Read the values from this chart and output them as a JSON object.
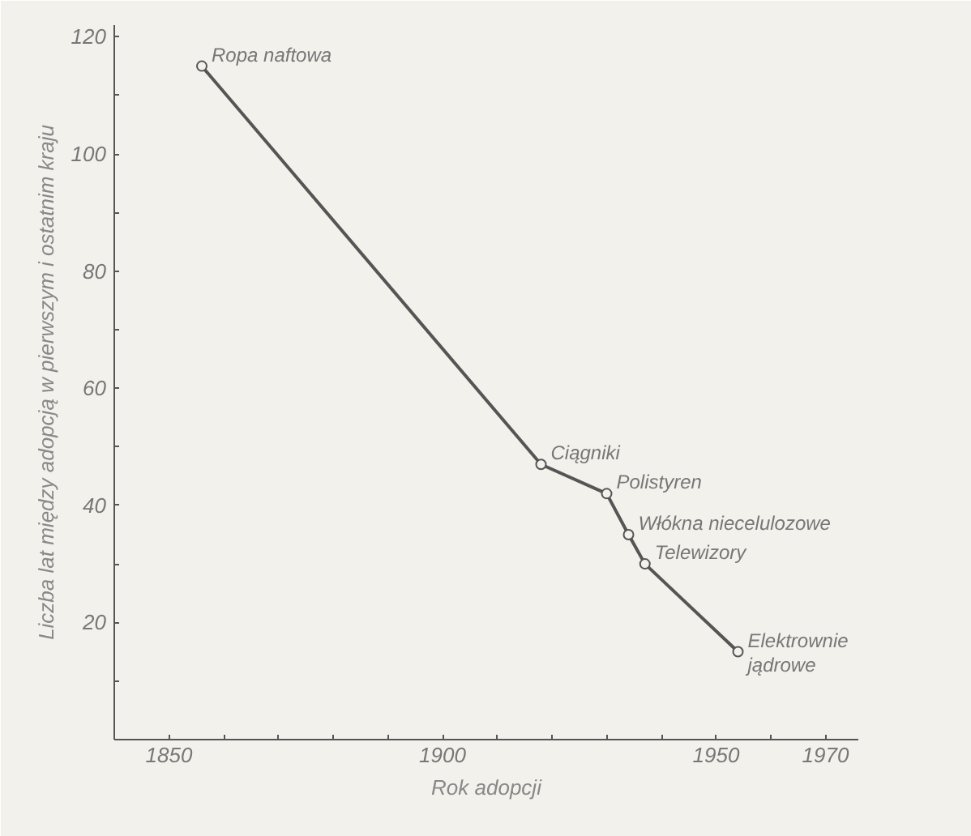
{
  "chart_data": {
    "type": "line",
    "xlabel": "Rok adopcji",
    "ylabel": "Liczba lat między adopcją w pierwszym i ostatnim kraju",
    "x": [
      1856,
      1918,
      1930,
      1934,
      1937,
      1954
    ],
    "series": [
      {
        "color": "#555555",
        "values": [
          115,
          47,
          42,
          35,
          30,
          15
        ]
      }
    ],
    "marker": "circle",
    "line_style": "solid",
    "grid": false,
    "xlim": [
      1840,
      1976
    ],
    "ylim": [
      0,
      122
    ],
    "xticks": [
      1850,
      {
        "value": 1860,
        "label": null
      },
      {
        "value": 1870,
        "label": null
      },
      {
        "value": 1880,
        "label": null
      },
      {
        "value": 1890,
        "label": null
      },
      1900,
      {
        "value": 1910,
        "label": null
      },
      {
        "value": 1920,
        "label": null
      },
      {
        "value": 1930,
        "label": null
      },
      {
        "value": 1940,
        "label": null
      },
      1950,
      {
        "value": 1960,
        "label": null
      },
      1970
    ],
    "yticks": [
      {
        "value": 10,
        "label": null
      },
      20,
      {
        "value": 30,
        "label": null
      },
      40,
      {
        "value": 50,
        "label": null
      },
      60,
      {
        "value": 70,
        "label": null
      },
      80,
      {
        "value": 90,
        "label": null
      },
      100,
      {
        "value": 110,
        "label": null
      },
      120
    ],
    "annotations": [
      {
        "text": "Ropa naftowa",
        "x": 1856,
        "y": 115
      },
      {
        "text": "Ciągniki",
        "x": 1918,
        "y": 47
      },
      {
        "text": "Polistyren",
        "x": 1930,
        "y": 42
      },
      {
        "text": "Włókna niecelulozowe",
        "x": 1934,
        "y": 35
      },
      {
        "text": "Telewizory",
        "x": 1937,
        "y": 30
      },
      {
        "text": "Elektrownie\njądrowe",
        "x": 1954,
        "y": 15
      }
    ]
  }
}
